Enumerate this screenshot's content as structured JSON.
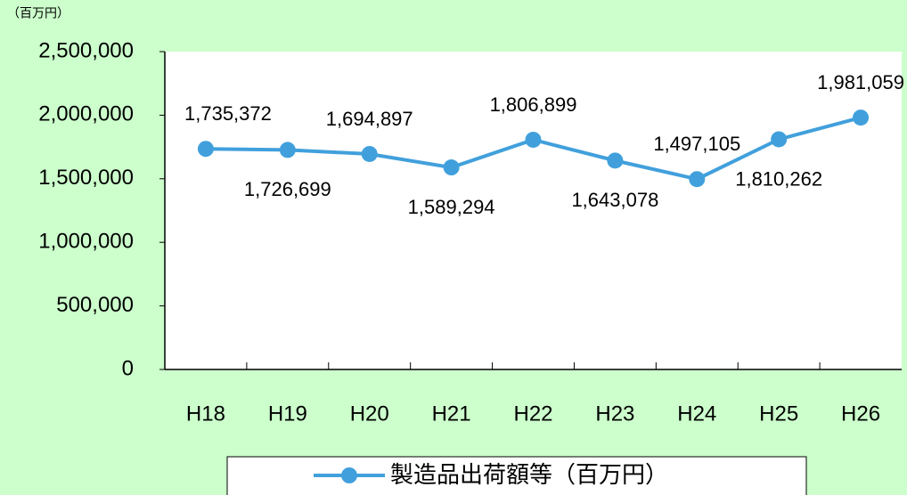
{
  "chart_data": {
    "type": "line",
    "y_label": "（百万円）",
    "categories": [
      "H18",
      "H19",
      "H20",
      "H21",
      "H22",
      "H23",
      "H24",
      "H25",
      "H26"
    ],
    "series": [
      {
        "name": "製造品出荷額等（百万円）",
        "color": "#41a0dc",
        "values": [
          1735372,
          1726699,
          1694897,
          1589294,
          1806899,
          1643078,
          1497105,
          1810262,
          1981059
        ],
        "value_labels": [
          "1,735,372",
          "1,726,699",
          "1,694,897",
          "1,589,294",
          "1,806,899",
          "1,643,078",
          "1,497,105",
          "1,810,262",
          "1,981,059"
        ]
      }
    ],
    "ylim": [
      0,
      2500000
    ],
    "yticks": [
      0,
      {
        "value": 500000,
        "label": "500,000"
      },
      {
        "value": 1000000,
        "label": "1,000,000"
      },
      {
        "value": 1500000,
        "label": "1,500,000"
      },
      {
        "value": 2000000,
        "label": "2,000,000"
      },
      {
        "value": 2500000,
        "label": "2,500,000"
      }
    ],
    "legend": "bottom",
    "grid": false
  }
}
